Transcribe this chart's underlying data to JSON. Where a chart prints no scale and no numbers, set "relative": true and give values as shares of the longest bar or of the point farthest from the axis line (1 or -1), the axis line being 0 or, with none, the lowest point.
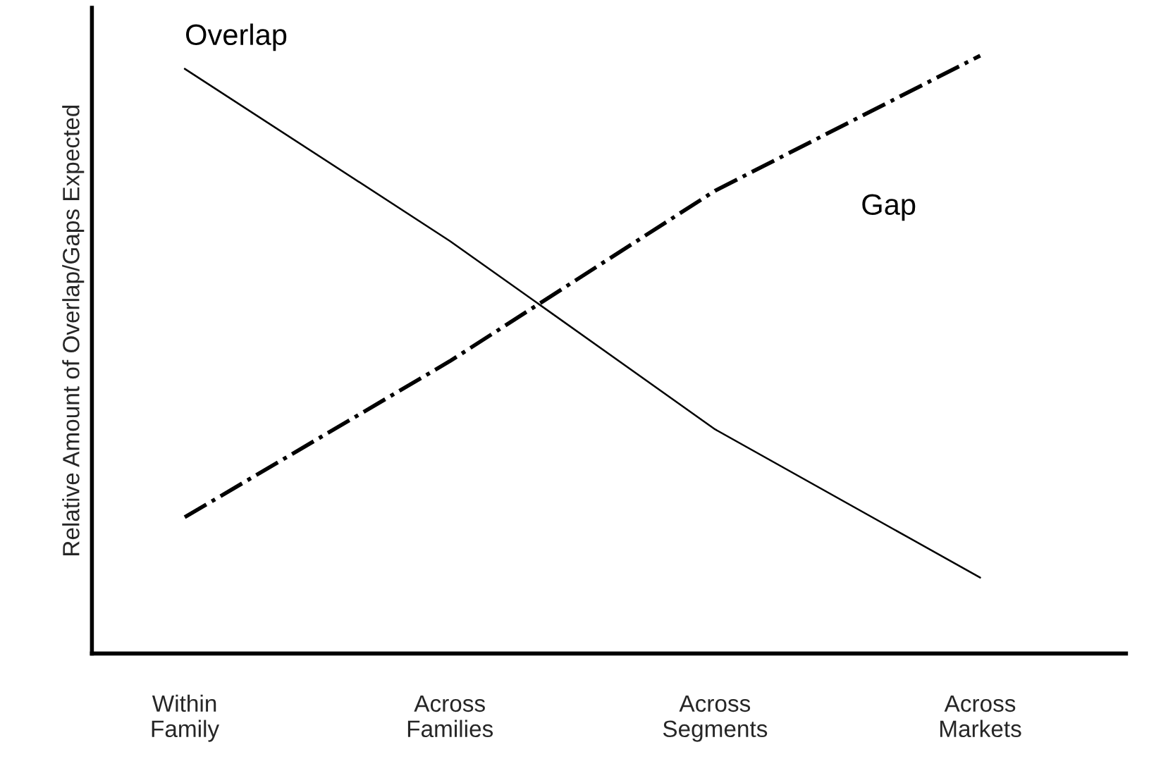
{
  "chart_data": {
    "type": "line",
    "relative": true,
    "ylabel": "Relative Amount of Overlap/Gaps Expected",
    "categories": [
      "Within\nFamily",
      "Across\nFamilies",
      "Across\nSegments",
      "Across\nMarkets"
    ],
    "series": [
      {
        "name": "Overlap",
        "color": "#000000",
        "line_style": "solid",
        "values": [
          0.978,
          0.69,
          0.375,
          0.127
        ]
      },
      {
        "name": "Gap",
        "color": "#000000",
        "line_style": "dashdot",
        "values": [
          0.228,
          0.489,
          0.774,
          1.0
        ]
      }
    ],
    "grid": false,
    "legend": false,
    "marker": "none"
  }
}
